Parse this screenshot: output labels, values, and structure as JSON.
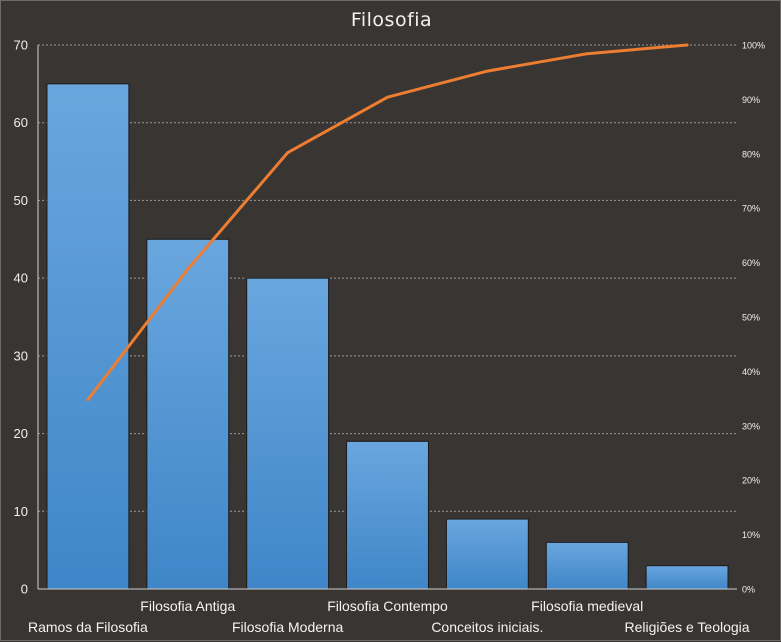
{
  "chart_data": {
    "type": "bar",
    "title": "Filosofia",
    "categories": [
      "Ramos da Filosofia",
      "Filosofia Antiga",
      "Filosofia Moderna",
      "Filosofia Contempo",
      "Conceitos iniciais.",
      "Filosofia medieval",
      "Religiões e Teologia"
    ],
    "series": [
      {
        "type": "bar",
        "values": [
          65,
          45,
          40,
          19,
          9,
          6,
          3
        ]
      },
      {
        "type": "line",
        "axis": "secondary",
        "values": [
          34.8,
          58.8,
          80.2,
          90.4,
          95.2,
          98.4,
          100
        ]
      }
    ],
    "ylim": [
      0,
      70
    ],
    "yticks": [
      0,
      10,
      20,
      30,
      40,
      50,
      60,
      70
    ],
    "y2lim": [
      0,
      100
    ],
    "y2ticks": [
      "0%",
      "10%",
      "20%",
      "30%",
      "40%",
      "50%",
      "60%",
      "70%",
      "80%",
      "90%",
      "100%"
    ],
    "grid": true,
    "legend": "none",
    "colors": {
      "bar": "#5b9bd5",
      "bar_top": "#6aa6de",
      "bar_bottom": "#3f86c8",
      "line": "#ed7d31",
      "background": "#383533",
      "text": "#f0f0f0"
    }
  }
}
